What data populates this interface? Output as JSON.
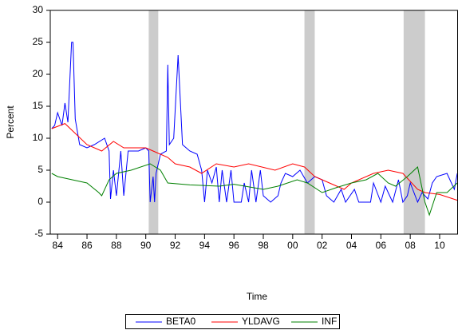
{
  "chart_data": {
    "type": "line",
    "y_label": "Percent",
    "x_label": "Time",
    "xlim": [
      1983.5,
      2011.25
    ],
    "ylim": [
      -5,
      30
    ],
    "yticks": [
      -5,
      0,
      5,
      10,
      15,
      20,
      25,
      30
    ],
    "xticks": [
      {
        "value": 1984,
        "label": "84"
      },
      {
        "value": 1986,
        "label": "86"
      },
      {
        "value": 1988,
        "label": "88"
      },
      {
        "value": 1990,
        "label": "90"
      },
      {
        "value": 1992,
        "label": "92"
      },
      {
        "value": 1994,
        "label": "94"
      },
      {
        "value": 1996,
        "label": "96"
      },
      {
        "value": 1998,
        "label": "98"
      },
      {
        "value": 2000,
        "label": "00"
      },
      {
        "value": 2002,
        "label": "02"
      },
      {
        "value": 2004,
        "label": "04"
      },
      {
        "value": 2006,
        "label": "06"
      },
      {
        "value": 2008,
        "label": "08"
      },
      {
        "value": 2010,
        "label": "10"
      }
    ],
    "shaded_regions": [
      [
        1990.2,
        1990.85
      ],
      [
        2000.8,
        2001.5
      ],
      [
        2007.55,
        2009.0
      ]
    ],
    "shade_color": "#cccccc",
    "series": [
      {
        "name": "BETA0",
        "color": "#0000ff",
        "x": [
          1983.6,
          1983.8,
          1984.0,
          1984.3,
          1984.5,
          1984.7,
          1984.95,
          1985.05,
          1985.2,
          1985.5,
          1986.0,
          1986.5,
          1987.2,
          1987.5,
          1987.6,
          1987.8,
          1988.0,
          1988.3,
          1988.5,
          1988.8,
          1989.5,
          1990.0,
          1990.2,
          1990.3,
          1990.5,
          1990.6,
          1990.7,
          1991.0,
          1991.4,
          1991.5,
          1991.6,
          1991.9,
          1992.2,
          1992.5,
          1993.0,
          1993.5,
          1993.8,
          1994.0,
          1994.2,
          1994.5,
          1994.8,
          1995.0,
          1995.2,
          1995.5,
          1995.8,
          1996.0,
          1996.5,
          1996.7,
          1997.0,
          1997.2,
          1997.5,
          1997.8,
          1998.0,
          1998.5,
          1999.0,
          1999.2,
          1999.5,
          2000.0,
          2000.5,
          2001.0,
          2001.5,
          2002.0,
          2002.3,
          2002.8,
          2003.3,
          2003.6,
          2004.2,
          2004.5,
          2005.3,
          2005.5,
          2006.0,
          2006.3,
          2006.8,
          2007.2,
          2007.5,
          2007.8,
          2008.0,
          2008.5,
          2008.8,
          2009.2,
          2009.5,
          2009.8,
          2010.5,
          2011.0,
          2011.2
        ],
        "values": [
          11.5,
          12,
          14,
          12,
          15.5,
          12.5,
          25,
          25,
          13,
          9,
          8.5,
          9,
          10,
          8,
          0.5,
          5,
          1,
          8,
          1,
          8,
          8,
          8.5,
          8,
          0,
          4,
          0,
          4.5,
          7.5,
          8,
          21.5,
          9,
          10,
          23,
          9,
          8,
          7.5,
          5,
          0,
          5,
          3,
          5.5,
          0,
          5,
          0,
          5,
          0,
          0,
          3,
          0,
          5,
          0,
          5,
          1,
          0,
          1,
          3,
          4.5,
          4,
          5,
          3,
          4,
          3.5,
          1,
          0,
          2,
          0,
          2,
          0,
          0,
          3,
          0,
          2.5,
          0,
          3.5,
          0,
          1,
          3,
          0,
          1.5,
          0.5,
          3,
          4,
          4.5,
          2,
          4.5
        ]
      },
      {
        "name": "YLDAVG",
        "color": "#ff0000",
        "x": [
          1983.6,
          1984.5,
          1986.0,
          1987.0,
          1987.8,
          1988.5,
          1990.0,
          1990.5,
          1991.5,
          1992.0,
          1993.0,
          1993.8,
          1994.8,
          1996.0,
          1997.0,
          1998.8,
          2000.0,
          2000.8,
          2001.5,
          2002.5,
          2003.5,
          2004.0,
          2005.5,
          2006.5,
          2007.5,
          2008.5,
          2009.0,
          2010.0,
          2011.2
        ],
        "values": [
          11.5,
          12.3,
          9,
          8,
          9.5,
          8.5,
          8.5,
          8,
          7,
          6,
          5.5,
          4.5,
          6,
          5.5,
          6,
          5,
          6,
          5.5,
          4,
          3,
          2,
          3,
          4.5,
          5,
          4.5,
          2,
          1.5,
          1.2,
          0.3
        ]
      },
      {
        "name": "INF",
        "color": "#008000",
        "x": [
          1983.6,
          1984.0,
          1985.0,
          1986.0,
          1986.8,
          1987.0,
          1987.5,
          1988.0,
          1989.0,
          1990.3,
          1991.0,
          1991.5,
          1993.0,
          1995.0,
          1996.0,
          1998.0,
          1999.0,
          2000.3,
          2001.0,
          2002.0,
          2003.0,
          2004.0,
          2005.0,
          2005.8,
          2006.5,
          2007.0,
          2007.8,
          2008.5,
          2009.0,
          2009.3,
          2009.8,
          2010.5,
          2011.2
        ],
        "values": [
          4.5,
          4,
          3.5,
          3,
          1.5,
          1,
          3.5,
          4.5,
          5,
          6,
          5,
          3,
          2.7,
          2.5,
          2.8,
          2,
          2.5,
          3.5,
          3,
          1.5,
          2.3,
          3,
          3.5,
          4.5,
          3,
          2.5,
          4,
          5.5,
          0,
          -2,
          1.5,
          1.5,
          3
        ]
      }
    ]
  }
}
